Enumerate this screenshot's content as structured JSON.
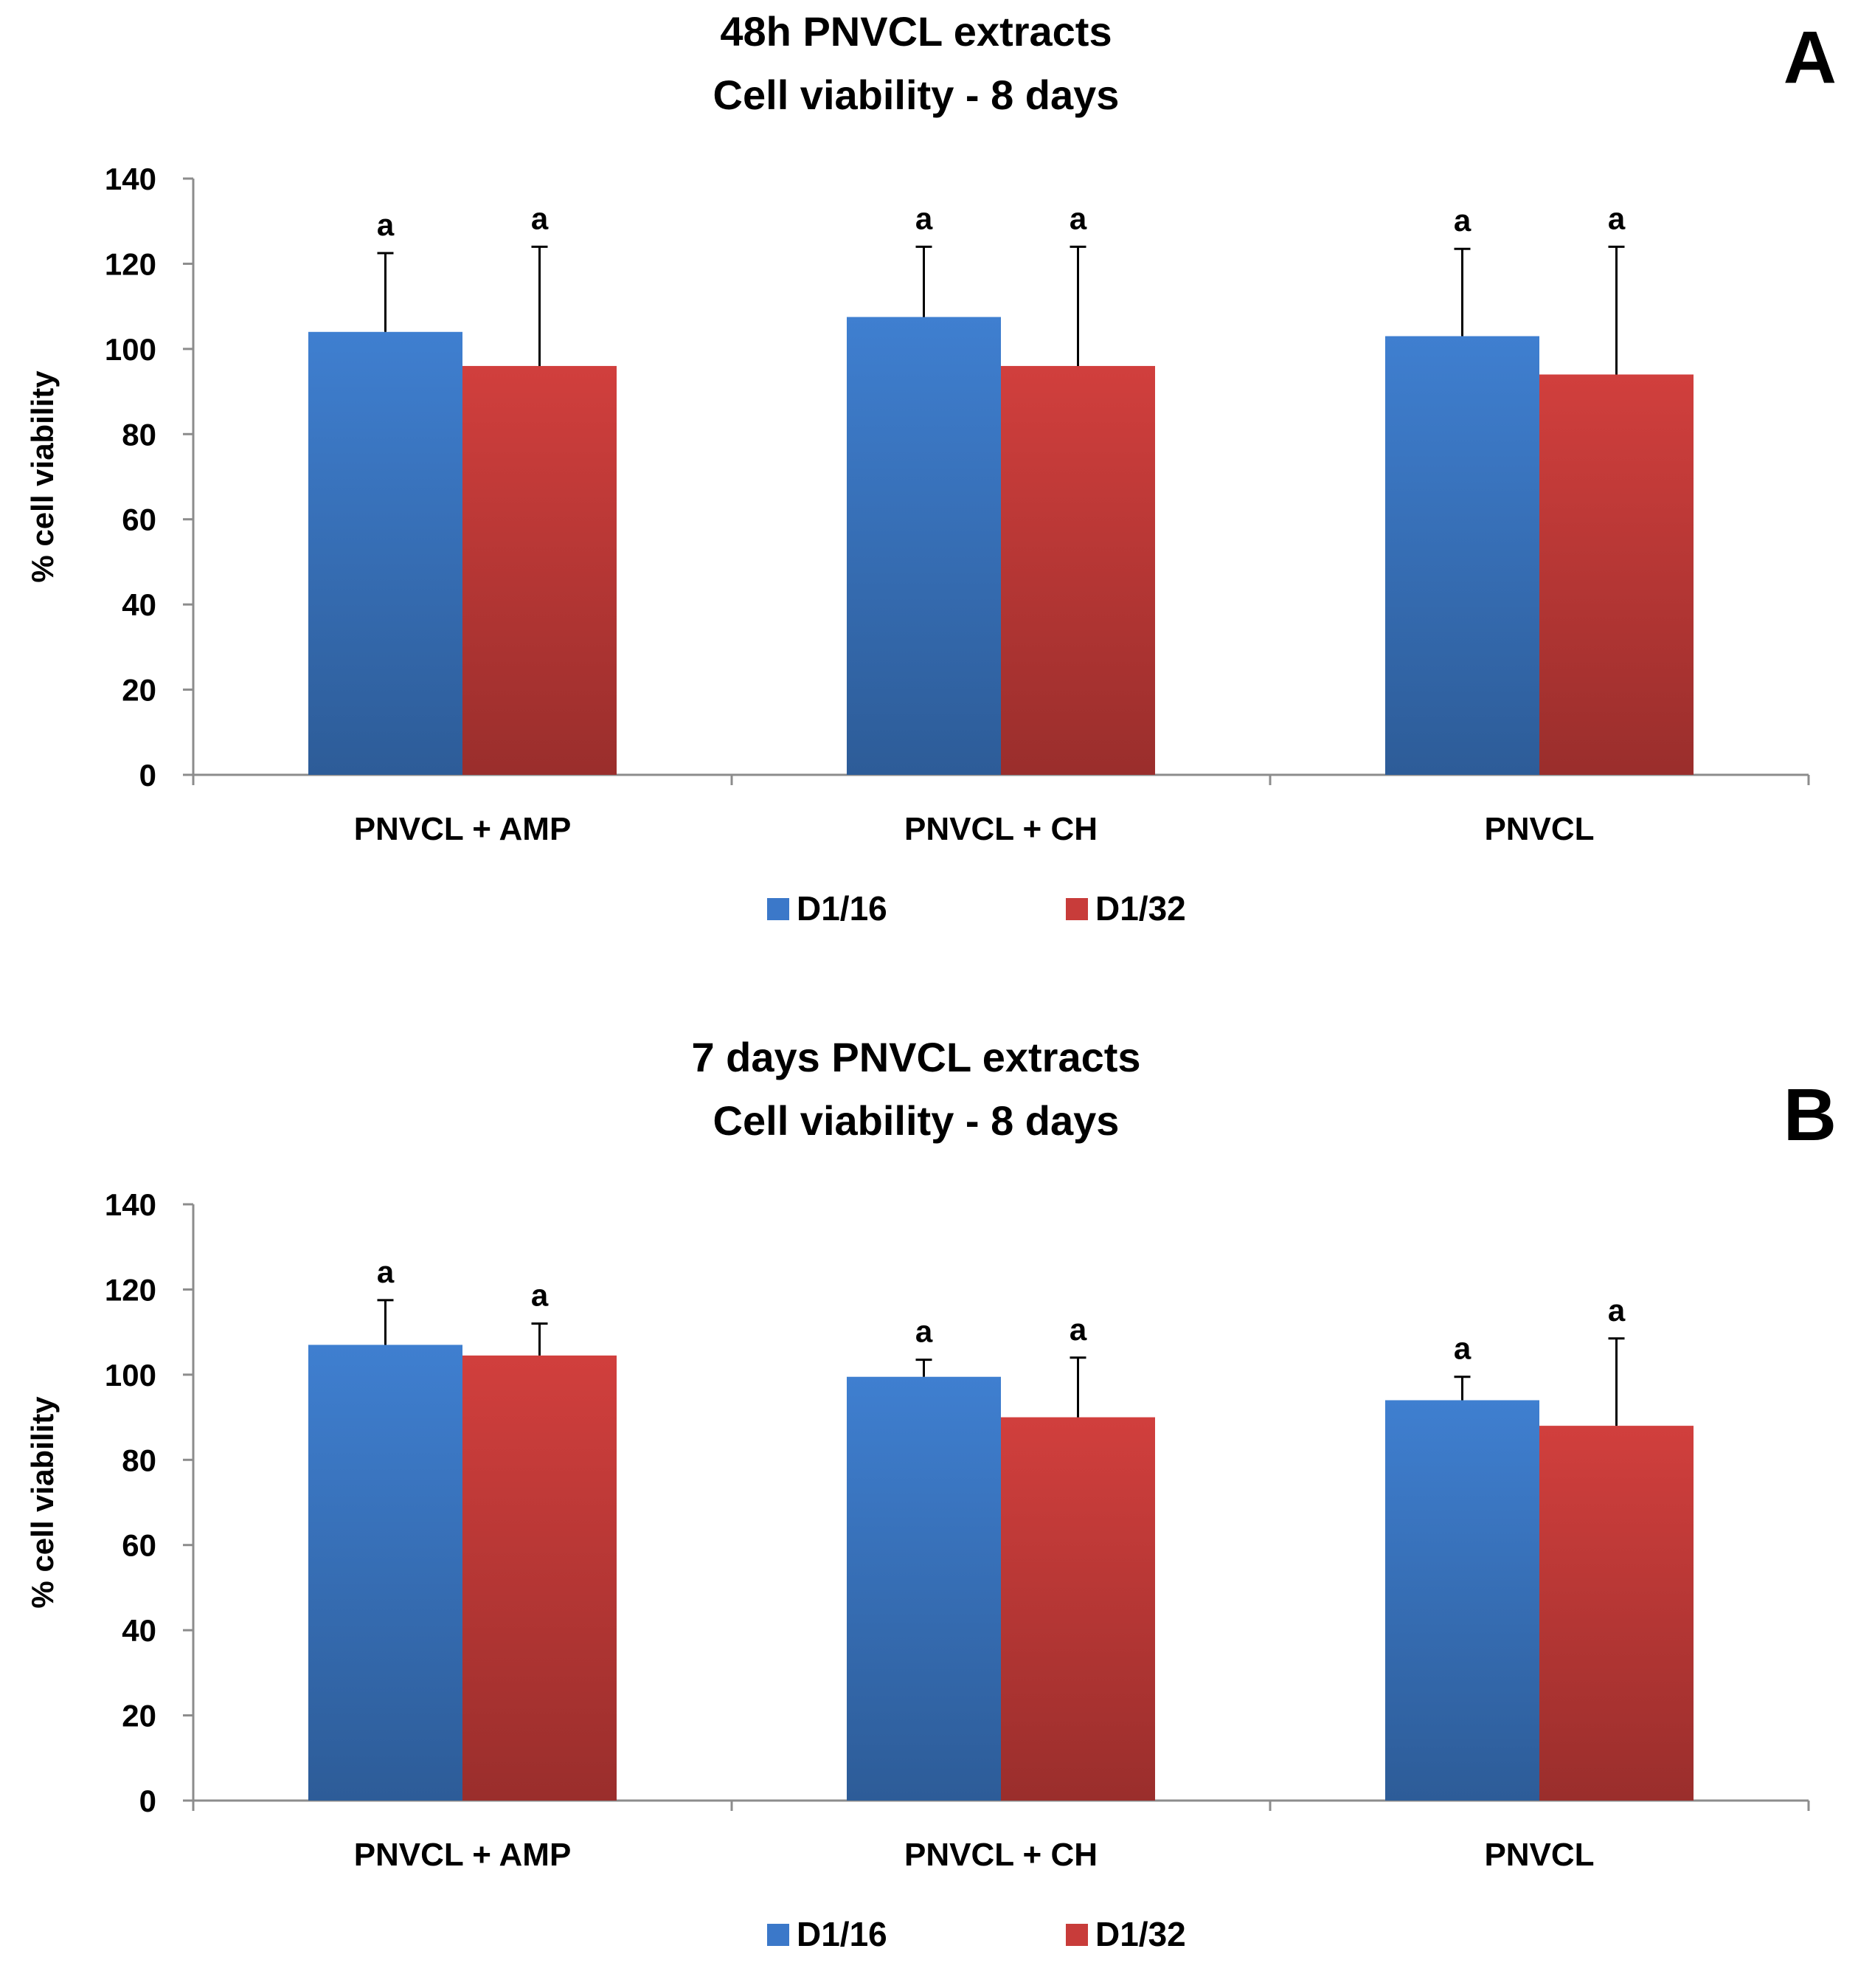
{
  "chart_data": [
    {
      "type": "bar",
      "panel_label": "A",
      "title_lines": [
        "48h PNVCL extracts",
        "Cell viability - 8 days"
      ],
      "ylabel": "% cell viability",
      "ylim": [
        0,
        140
      ],
      "yticks": [
        0,
        20,
        40,
        60,
        80,
        100,
        120,
        140
      ],
      "categories": [
        "PNVCL + AMP",
        "PNVCL + CH",
        "PNVCL"
      ],
      "series": [
        {
          "name": "D1/16",
          "color": "#3b78c9",
          "values": [
            104,
            107.5,
            103
          ],
          "errors": [
            18.5,
            16.5,
            20.5
          ],
          "labels": [
            "a",
            "a",
            "a"
          ]
        },
        {
          "name": "D1/32",
          "color": "#c83c3a",
          "values": [
            96,
            96,
            94
          ],
          "errors": [
            28,
            28,
            30
          ],
          "labels": [
            "a",
            "a",
            "a"
          ]
        }
      ],
      "legend_position": "bottom"
    },
    {
      "type": "bar",
      "panel_label": "B",
      "title_lines": [
        "7 days PNVCL extracts",
        "Cell viability - 8 days"
      ],
      "ylabel": "% cell viability",
      "ylim": [
        0,
        140
      ],
      "yticks": [
        0,
        20,
        40,
        60,
        80,
        100,
        120,
        140
      ],
      "categories": [
        "PNVCL + AMP",
        "PNVCL + CH",
        "PNVCL"
      ],
      "series": [
        {
          "name": "D1/16",
          "color": "#3b78c9",
          "values": [
            107,
            99.5,
            94
          ],
          "errors": [
            10.5,
            4,
            5.5
          ],
          "labels": [
            "a",
            "a",
            "a"
          ]
        },
        {
          "name": "D1/32",
          "color": "#c83c3a",
          "values": [
            104.5,
            90,
            88
          ],
          "errors": [
            7.5,
            14,
            20.5
          ],
          "labels": [
            "a",
            "a",
            "a"
          ]
        }
      ],
      "legend_position": "bottom"
    }
  ]
}
